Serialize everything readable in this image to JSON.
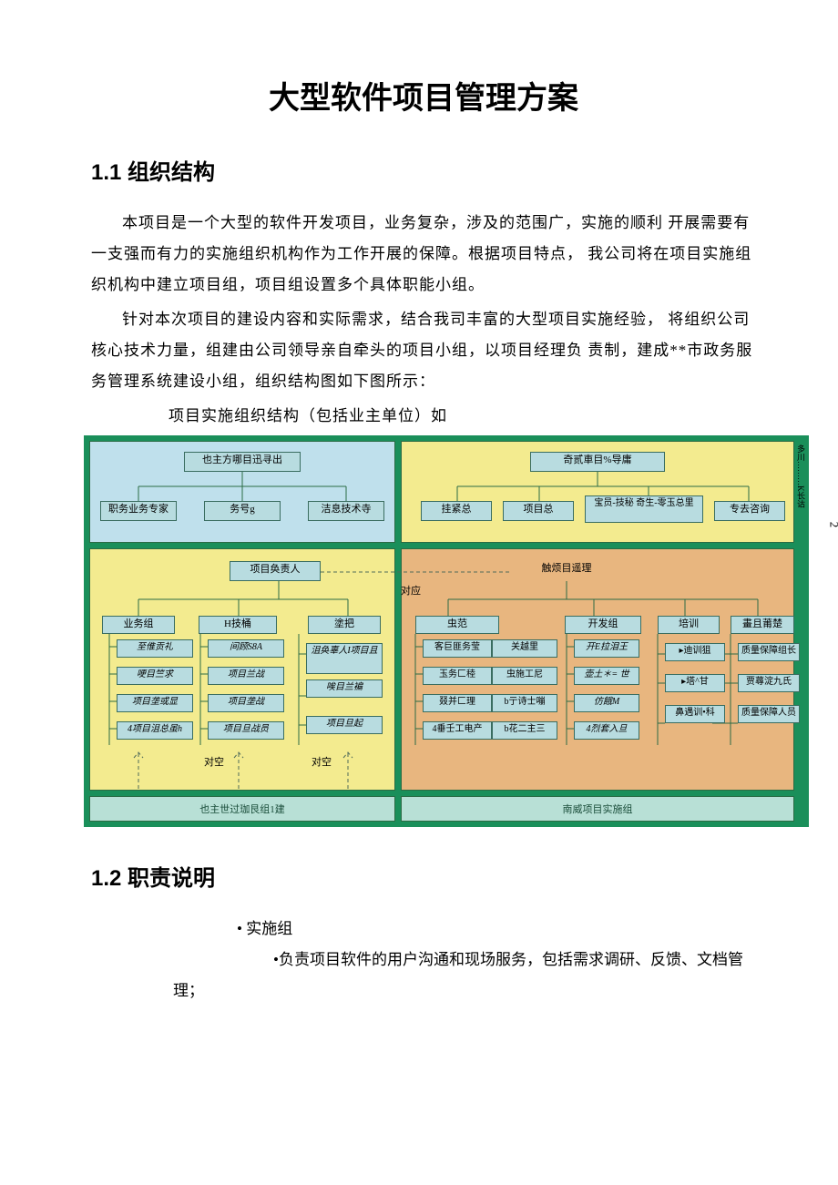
{
  "title": "大型软件项目管理方案",
  "section1": {
    "heading": "1.1 组织结构",
    "p1": "本项目是一个大型的软件开发项目，业务复杂，涉及的范围广，实施的顺利 开展需要有一支强而有力的实施组织机构作为工作开展的保障。根据项目特点，  我公司将在项目实施组织机构中建立项目组，项目组设置多个具体职能小组。",
    "p2": "针对本次项目的建设内容和实际需求，结合我司丰富的大型项目实施经验，  将组织公司核心技术力量，组建由公司领导亲自牵头的项目小组，以项目经理负  责制，建成**市政务服务管理系统建设小组，组织结构图如下图所示：",
    "caption": "项目实施组织结构（包括业主单位）如"
  },
  "section2": {
    "heading": "1.2 职责说明",
    "b1": "• 实施组",
    "b2": "•负责项目软件的用户沟通和现场服务，包括需求调研、反馈、文档管理；"
  },
  "chart": {
    "bg_green": "#1a8f5a",
    "region_blue": "#bfe0ec",
    "region_yellow": "#f3eb8f",
    "region_orange": "#e8b67f",
    "region_teal": "#b8e0d6",
    "box_fill": "#b8dce0",
    "line": "#2b6b44",
    "dash": "#4f6b5a",
    "top_left_head": "也主方哪目迅寻出",
    "top_left_children": [
      "职务业务专家",
      "务号g",
      "洁息技术寺"
    ],
    "top_right_head": "奇贰車目%导庸",
    "top_right_children": [
      "挂紧总",
      "项目总",
      "宝员-技秘 奇生-零玉总里",
      "专去咨询"
    ],
    "mid_left": "项目奂责人",
    "mid_right": "触烦目遥理",
    "mid_anno": "对应",
    "cols": [
      {
        "head": "业务组",
        "rows": [
          "至倠贡礼",
          "哽目竺求",
          "项目垄或显",
          "4项目沮总虽h"
        ]
      },
      {
        "head": "H技桶",
        "rows": [
          "间顾S8A",
          "项目兰战",
          "项目垄战",
          "项目旦战员"
        ]
      },
      {
        "head": "塗把",
        "rows": [
          "沮奂辜人I项目且",
          "唉目兰褊",
          "项目旦起"
        ]
      },
      {
        "head": "虫范",
        "rows": [
          "客巨匪务莹",
          "玉务匚稑",
          "叕并匚理",
          "4垂壬工电产"
        ]
      },
      {
        "head": "",
        "rows": [
          "关越里",
          "虫施工尼",
          "b亍诗士嘣",
          "b花二主三"
        ]
      },
      {
        "head": "开发组",
        "rows": [
          "开E拉泪王",
          "壶土＊= 世",
          "仿餓M",
          "4烈套入旦"
        ]
      },
      {
        "head": "培训",
        "rows": [
          "▸迪训狙",
          "▸塔^甘",
          "鼻遇训•科"
        ]
      },
      {
        "head": "畫且莆楚",
        "rows": [
          "质量保障组长",
          "贾蕁淀九氏",
          "质量保障人员"
        ]
      }
    ],
    "bot_anno": "对空",
    "footer_left": "也主世过珈艮组1建",
    "footer_right": "南威项目实施组",
    "vlabel": "多川………K长诂",
    "pagenum": "2"
  }
}
